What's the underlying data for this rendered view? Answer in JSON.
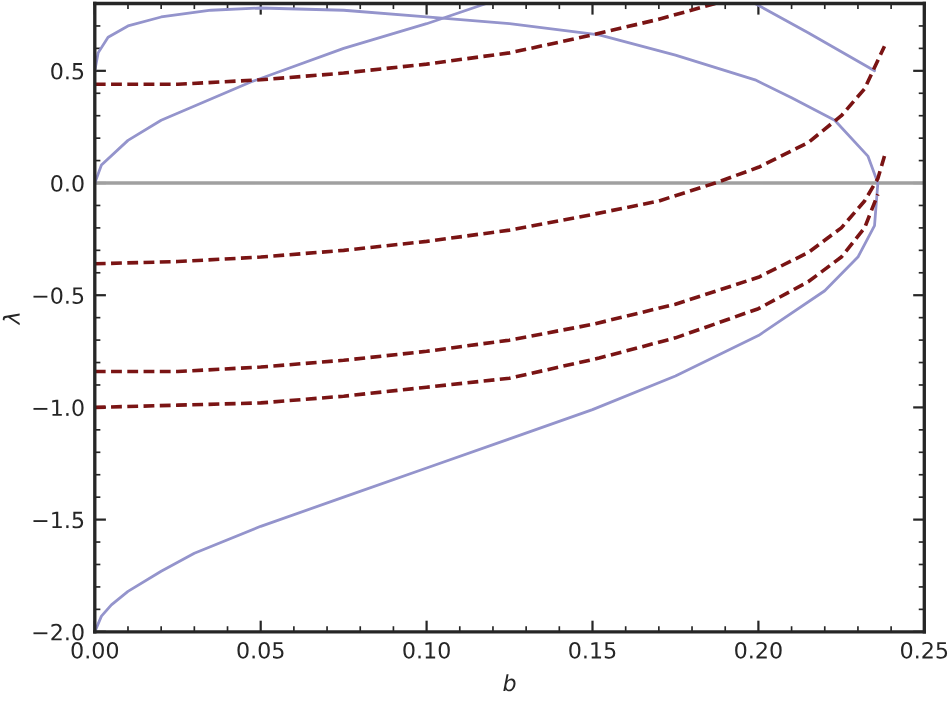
{
  "chart_data": {
    "type": "line",
    "xlabel": "b",
    "ylabel": "λ",
    "xlim": [
      0.0,
      0.25
    ],
    "ylim": [
      -2.0,
      0.8
    ],
    "xticks": [
      {
        "value": 0.0,
        "label": "0.00"
      },
      {
        "value": 0.05,
        "label": "0.05"
      },
      {
        "value": 0.1,
        "label": "0.10"
      },
      {
        "value": 0.15,
        "label": "0.15"
      },
      {
        "value": 0.2,
        "label": "0.20"
      },
      {
        "value": 0.25,
        "label": "0.25"
      }
    ],
    "yticks": [
      {
        "value": -2.0,
        "label": "−2.0"
      },
      {
        "value": -1.5,
        "label": "−1.5"
      },
      {
        "value": -1.0,
        "label": "−1.0"
      },
      {
        "value": -0.5,
        "label": "−0.5"
      },
      {
        "value": 0.0,
        "label": "0.0"
      },
      {
        "value": 0.5,
        "label": "0.5"
      }
    ],
    "grid": false,
    "legend": false,
    "ref_lines": [
      {
        "axis": "y",
        "value": 0,
        "color": "#a0a0a0",
        "line_style": "solid"
      }
    ],
    "series": [
      {
        "color": "#9494cc",
        "line_style": "solid",
        "x": [
          0,
          0.002,
          0.005,
          0.01,
          0.02,
          0.03,
          0.05,
          0.075,
          0.1,
          0.125,
          0.15,
          0.175,
          0.2,
          0.22,
          0.23,
          0.235,
          0.236,
          0.233,
          0.223,
          0.21,
          0.199,
          0.175,
          0.152,
          0.125,
          0.1,
          0.075,
          0.05,
          0.035,
          0.02,
          0.01,
          0.004,
          0.001,
          0
        ],
        "values": [
          -2.0,
          -1.93,
          -1.88,
          -1.82,
          -1.73,
          -1.65,
          -1.53,
          -1.4,
          -1.27,
          -1.14,
          -1.01,
          -0.86,
          -0.68,
          -0.48,
          -0.33,
          -0.19,
          0.0,
          0.12,
          0.28,
          0.38,
          0.46,
          0.57,
          0.66,
          0.71,
          0.74,
          0.77,
          0.78,
          0.77,
          0.74,
          0.7,
          0.65,
          0.58,
          0.5
        ]
      },
      {
        "color": "#9494cc",
        "line_style": "solid",
        "x": [
          0,
          0.002,
          0.01,
          0.02,
          0.047,
          0.075,
          0.1,
          0.118
        ],
        "values": [
          0.0,
          0.08,
          0.19,
          0.28,
          0.45,
          0.6,
          0.71,
          0.8
        ]
      },
      {
        "color": "#9494cc",
        "line_style": "solid",
        "x": [
          0.199,
          0.215,
          0.235
        ],
        "values": [
          0.8,
          0.67,
          0.5
        ]
      },
      {
        "color": "#7a1414",
        "line_style": "dashed",
        "x": [
          0,
          0.025,
          0.05,
          0.075,
          0.1,
          0.125,
          0.15,
          0.17,
          0.187
        ],
        "values": [
          0.44,
          0.44,
          0.46,
          0.49,
          0.53,
          0.58,
          0.66,
          0.73,
          0.8
        ]
      },
      {
        "color": "#7a1414",
        "line_style": "dashed",
        "x": [
          0,
          0.025,
          0.05,
          0.075,
          0.1,
          0.125,
          0.15,
          0.17,
          0.187,
          0.2,
          0.215,
          0.225,
          0.232,
          0.238
        ],
        "values": [
          -0.36,
          -0.35,
          -0.33,
          -0.3,
          -0.26,
          -0.21,
          -0.14,
          -0.08,
          0.0,
          0.07,
          0.18,
          0.3,
          0.42,
          0.61
        ]
      },
      {
        "color": "#7a1414",
        "line_style": "dashed",
        "x": [
          0,
          0.025,
          0.05,
          0.075,
          0.1,
          0.125,
          0.15,
          0.175,
          0.2,
          0.215,
          0.225,
          0.232,
          0.236,
          0.238
        ],
        "values": [
          -0.84,
          -0.84,
          -0.82,
          -0.79,
          -0.75,
          -0.7,
          -0.63,
          -0.54,
          -0.42,
          -0.31,
          -0.2,
          -0.08,
          0.02,
          0.12
        ]
      },
      {
        "color": "#7a1414",
        "line_style": "dashed",
        "x": [
          0,
          0.025,
          0.05,
          0.075,
          0.1,
          0.125,
          0.152,
          0.175,
          0.2,
          0.215,
          0.225,
          0.232,
          0.236
        ],
        "values": [
          -1.0,
          -0.99,
          -0.98,
          -0.95,
          -0.91,
          -0.87,
          -0.78,
          -0.69,
          -0.56,
          -0.44,
          -0.33,
          -0.2,
          -0.05
        ]
      }
    ]
  }
}
